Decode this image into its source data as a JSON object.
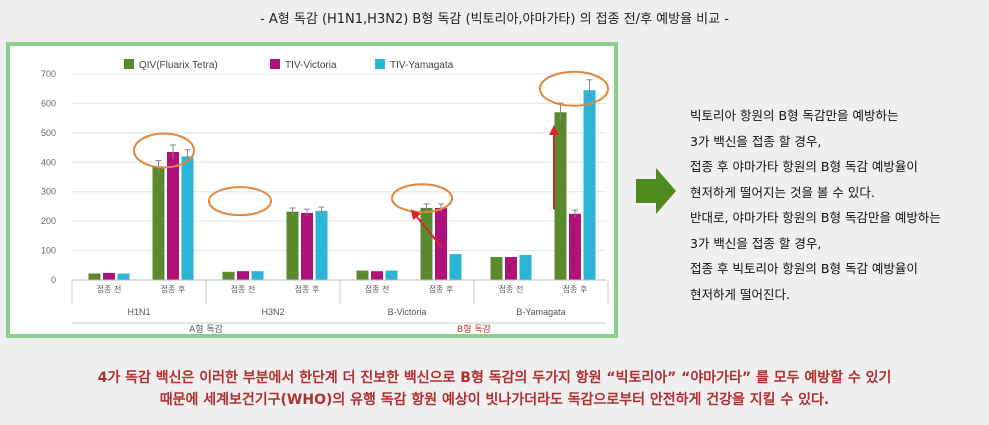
{
  "page_title": "- A형 독감 (H1N1,H3N2) B형 독감 (빅토리아,야마가타) 의 접종 전/후 예방율 비교 -",
  "colors": {
    "qiv": "#5b8a2e",
    "victoria": "#b0127a",
    "yamagata": "#2bb5d6",
    "frame": "#8ccf8c",
    "accent_red": "#b03030"
  },
  "chart_data": {
    "type": "bar",
    "title": "",
    "xlabel": "",
    "ylabel": "",
    "ylim": [
      0,
      700
    ],
    "yticks": [
      0,
      100,
      200,
      300,
      400,
      500,
      600,
      700
    ],
    "grid": true,
    "legend": "top",
    "categories": [
      "접종 전",
      "접종 후",
      "접종 전",
      "접종 후",
      "접종 전",
      "접종 후",
      "접종 전",
      "접종 후"
    ],
    "groups": [
      "H1N1",
      "H3N2",
      "B-Victoria",
      "B-Yamagata"
    ],
    "supergroups": [
      "A형 독감",
      "B형 독감"
    ],
    "series": [
      {
        "name": "QIV(Fluarix Tetra)",
        "values": [
          22,
          385,
          28,
          232,
          32,
          245,
          78,
          570
        ]
      },
      {
        "name": "TIV-Victoria",
        "values": [
          24,
          435,
          30,
          228,
          30,
          245,
          78,
          225
        ]
      },
      {
        "name": "TIV-Yamagata",
        "values": [
          22,
          420,
          30,
          235,
          32,
          88,
          85,
          645
        ]
      }
    ]
  },
  "side_text": [
    "빅토리아 항원의 B형 독감만을 예방하는",
    "3가 백신을 접종 할 경우,",
    "접종 후 야마가타 항원의 B형 독감 예방율이",
    "현저하게 떨어지는 것을 볼 수 있다.",
    "반대로, 야마가타 항원의 B형 독감만을 예방하는",
    "3가 백신을 접종 할 경우,",
    "접종 후 빅토리아 항원의 B형 독감 예방율이",
    "현저하게 떨어진다."
  ],
  "bottom_text": [
    "4가 독감 백신은 이러한 부분에서 한단계 더 진보한 백신으로 B형 독감의 두가지 항원 “빅토리아” “야마가타” 를 모두 예방할 수 있기",
    "때문에 세계보건기구(WHO)의 유행 독감 항원 예상이 빗나가더라도 독감으로부터 안전하게 건강을 지킬 수 있다."
  ],
  "icons": {
    "arrow": "arrow-right-icon"
  }
}
